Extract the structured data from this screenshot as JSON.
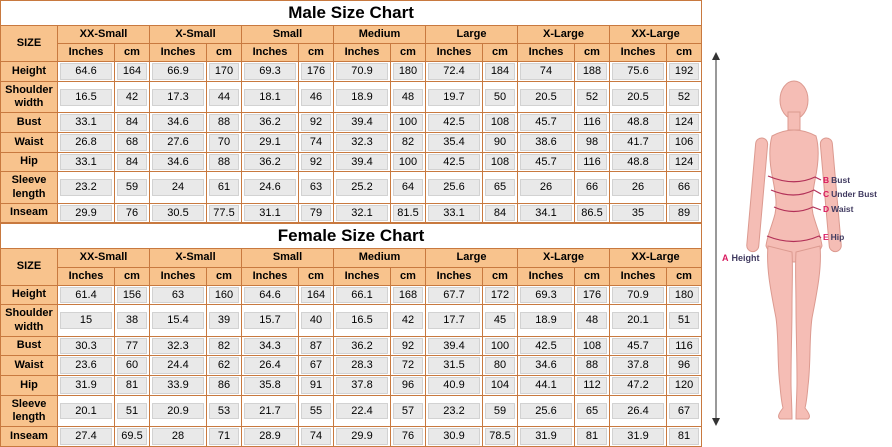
{
  "colors": {
    "table_border": "#c8793f",
    "header_bg": "#f8c38d",
    "value_cell_bg": "#e9e9e9",
    "figure_skin": "#f5bdb5",
    "figure_outline": "#dc9a90",
    "measure_line_color": "#b23058",
    "label_key_color": "#d81b60",
    "label_text_color": "#403a60"
  },
  "chart_data": [
    {
      "type": "table",
      "title": "Male Size Chart",
      "corner_label": "SIZE",
      "sizes": [
        "XX-Small",
        "X-Small",
        "Small",
        "Medium",
        "Large",
        "X-Large",
        "XX-Large"
      ],
      "units": [
        "Inches",
        "cm"
      ],
      "rows": [
        {
          "label": "Height",
          "values": [
            "64.6",
            "164",
            "66.9",
            "170",
            "69.3",
            "176",
            "70.9",
            "180",
            "72.4",
            "184",
            "74",
            "188",
            "75.6",
            "192"
          ]
        },
        {
          "label": "Shoulder width",
          "values": [
            "16.5",
            "42",
            "17.3",
            "44",
            "18.1",
            "46",
            "18.9",
            "48",
            "19.7",
            "50",
            "20.5",
            "52",
            "20.5",
            "52"
          ]
        },
        {
          "label": "Bust",
          "values": [
            "33.1",
            "84",
            "34.6",
            "88",
            "36.2",
            "92",
            "39.4",
            "100",
            "42.5",
            "108",
            "45.7",
            "116",
            "48.8",
            "124"
          ]
        },
        {
          "label": "Waist",
          "values": [
            "26.8",
            "68",
            "27.6",
            "70",
            "29.1",
            "74",
            "32.3",
            "82",
            "35.4",
            "90",
            "38.6",
            "98",
            "41.7",
            "106"
          ]
        },
        {
          "label": "Hip",
          "values": [
            "33.1",
            "84",
            "34.6",
            "88",
            "36.2",
            "92",
            "39.4",
            "100",
            "42.5",
            "108",
            "45.7",
            "116",
            "48.8",
            "124"
          ]
        },
        {
          "label": "Sleeve length",
          "values": [
            "23.2",
            "59",
            "24",
            "61",
            "24.6",
            "63",
            "25.2",
            "64",
            "25.6",
            "65",
            "26",
            "66",
            "26",
            "66"
          ]
        },
        {
          "label": "Inseam",
          "values": [
            "29.9",
            "76",
            "30.5",
            "77.5",
            "31.1",
            "79",
            "32.1",
            "81.5",
            "33.1",
            "84",
            "34.1",
            "86.5",
            "35",
            "89"
          ]
        }
      ]
    },
    {
      "type": "table",
      "title": "Female Size Chart",
      "corner_label": "SIZE",
      "sizes": [
        "XX-Small",
        "X-Small",
        "Small",
        "Medium",
        "Large",
        "X-Large",
        "XX-Large"
      ],
      "units": [
        "Inches",
        "cm"
      ],
      "rows": [
        {
          "label": "Height",
          "values": [
            "61.4",
            "156",
            "63",
            "160",
            "64.6",
            "164",
            "66.1",
            "168",
            "67.7",
            "172",
            "69.3",
            "176",
            "70.9",
            "180"
          ]
        },
        {
          "label": "Shoulder width",
          "values": [
            "15",
            "38",
            "15.4",
            "39",
            "15.7",
            "40",
            "16.5",
            "42",
            "17.7",
            "45",
            "18.9",
            "48",
            "20.1",
            "51"
          ]
        },
        {
          "label": "Bust",
          "values": [
            "30.3",
            "77",
            "32.3",
            "82",
            "34.3",
            "87",
            "36.2",
            "92",
            "39.4",
            "100",
            "42.5",
            "108",
            "45.7",
            "116"
          ]
        },
        {
          "label": "Waist",
          "values": [
            "23.6",
            "60",
            "24.4",
            "62",
            "26.4",
            "67",
            "28.3",
            "72",
            "31.5",
            "80",
            "34.6",
            "88",
            "37.8",
            "96"
          ]
        },
        {
          "label": "Hip",
          "values": [
            "31.9",
            "81",
            "33.9",
            "86",
            "35.8",
            "91",
            "37.8",
            "96",
            "40.9",
            "104",
            "44.1",
            "112",
            "47.2",
            "120"
          ]
        },
        {
          "label": "Sleeve length",
          "values": [
            "20.1",
            "51",
            "20.9",
            "53",
            "21.7",
            "55",
            "22.4",
            "57",
            "23.2",
            "59",
            "25.6",
            "65",
            "26.4",
            "67"
          ]
        },
        {
          "label": "Inseam",
          "values": [
            "27.4",
            "69.5",
            "28",
            "71",
            "28.9",
            "74",
            "29.9",
            "76",
            "30.9",
            "78.5",
            "31.9",
            "81",
            "31.9",
            "81"
          ]
        }
      ]
    }
  ],
  "figure": {
    "height_label": {
      "key": "A",
      "text": "Height"
    },
    "measure_labels": [
      {
        "key": "B",
        "text": "Bust"
      },
      {
        "key": "C",
        "text": "Under Bust"
      },
      {
        "key": "D",
        "text": "Waist"
      },
      {
        "key": "E",
        "text": "Hip"
      }
    ]
  }
}
